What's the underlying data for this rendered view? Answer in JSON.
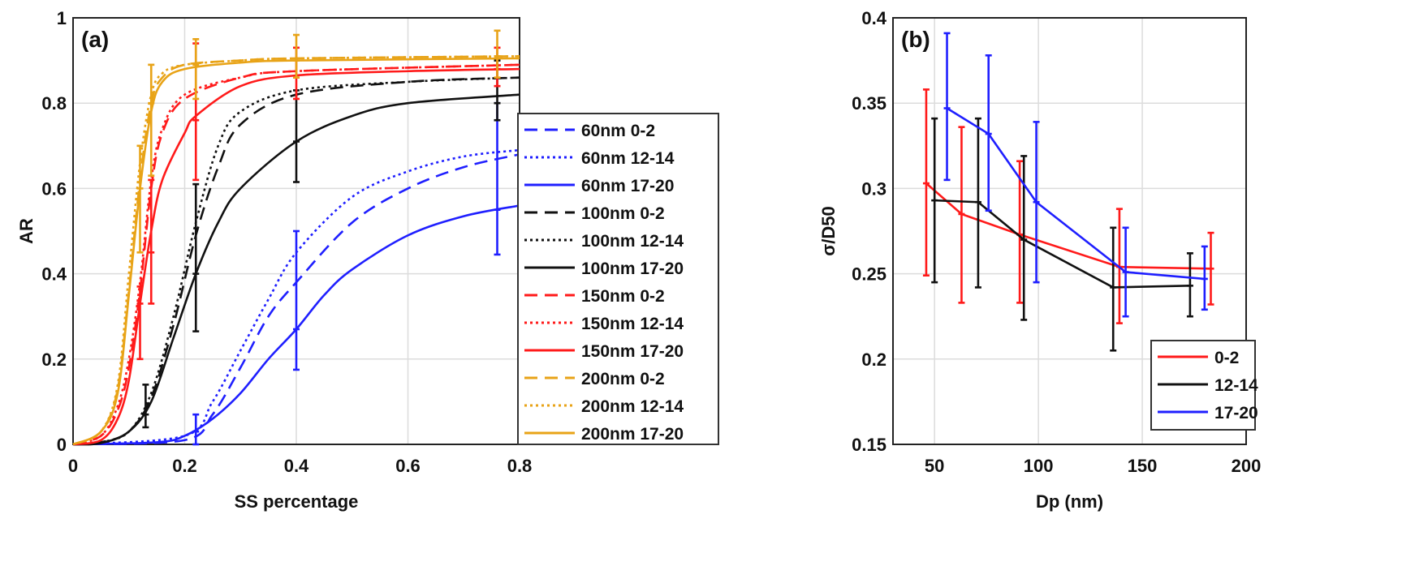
{
  "chart_data": [
    {
      "type": "line",
      "panel_label": "(a)",
      "xlabel": "SS percentage",
      "ylabel": "AR",
      "xlim": [
        0,
        0.8
      ],
      "ylim": [
        0,
        1
      ],
      "xticks": [
        "0",
        "0.2",
        "0.4",
        "0.6",
        "0.8"
      ],
      "yticks": [
        "0",
        "0.2",
        "0.4",
        "0.6",
        "0.8",
        "1"
      ],
      "grid": true,
      "legend_placement": "outside-right",
      "series": [
        {
          "name": "60nm 0-2",
          "color": "#1f1fff",
          "style": "dashed",
          "points": [
            [
              0,
              0
            ],
            [
              0.2,
              0.01
            ],
            [
              0.25,
              0.07
            ],
            [
              0.3,
              0.18
            ],
            [
              0.35,
              0.3
            ],
            [
              0.4,
              0.38
            ],
            [
              0.5,
              0.52
            ],
            [
              0.6,
              0.6
            ],
            [
              0.7,
              0.65
            ],
            [
              0.8,
              0.68
            ]
          ],
          "errorbars": []
        },
        {
          "name": "60nm 12-14",
          "color": "#1f1fff",
          "style": "dotted",
          "points": [
            [
              0,
              0
            ],
            [
              0.2,
              0.02
            ],
            [
              0.25,
              0.1
            ],
            [
              0.3,
              0.22
            ],
            [
              0.35,
              0.34
            ],
            [
              0.4,
              0.45
            ],
            [
              0.5,
              0.58
            ],
            [
              0.6,
              0.64
            ],
            [
              0.7,
              0.675
            ],
            [
              0.8,
              0.69
            ]
          ],
          "errorbars": []
        },
        {
          "name": "60nm 17-20",
          "color": "#1f1fff",
          "style": "solid",
          "points": [
            [
              0,
              0
            ],
            [
              0.15,
              0.005
            ],
            [
              0.2,
              0.02
            ],
            [
              0.25,
              0.06
            ],
            [
              0.3,
              0.12
            ],
            [
              0.35,
              0.2
            ],
            [
              0.4,
              0.27
            ],
            [
              0.45,
              0.35
            ],
            [
              0.5,
              0.41
            ],
            [
              0.6,
              0.49
            ],
            [
              0.7,
              0.535
            ],
            [
              0.8,
              0.56
            ]
          ],
          "errorbars": [
            [
              0.22,
              0.03,
              0.0,
              0.07
            ],
            [
              0.4,
              0.27,
              0.175,
              0.5
            ],
            [
              0.76,
              0.55,
              0.445,
              0.8
            ]
          ]
        },
        {
          "name": "100nm 0-2",
          "color": "#111111",
          "style": "dashed",
          "points": [
            [
              0,
              0
            ],
            [
              0.05,
              0.005
            ],
            [
              0.1,
              0.03
            ],
            [
              0.14,
              0.11
            ],
            [
              0.18,
              0.28
            ],
            [
              0.22,
              0.49
            ],
            [
              0.26,
              0.65
            ],
            [
              0.3,
              0.75
            ],
            [
              0.4,
              0.82
            ],
            [
              0.6,
              0.85
            ],
            [
              0.8,
              0.86
            ]
          ],
          "errorbars": []
        },
        {
          "name": "100nm 12-14",
          "color": "#111111",
          "style": "dotted",
          "points": [
            [
              0,
              0
            ],
            [
              0.05,
              0.005
            ],
            [
              0.1,
              0.03
            ],
            [
              0.14,
              0.12
            ],
            [
              0.18,
              0.3
            ],
            [
              0.22,
              0.52
            ],
            [
              0.26,
              0.7
            ],
            [
              0.3,
              0.78
            ],
            [
              0.4,
              0.83
            ],
            [
              0.6,
              0.85
            ],
            [
              0.8,
              0.86
            ]
          ],
          "errorbars": []
        },
        {
          "name": "100nm 17-20",
          "color": "#111111",
          "style": "solid",
          "points": [
            [
              0,
              0
            ],
            [
              0.05,
              0.003
            ],
            [
              0.1,
              0.03
            ],
            [
              0.14,
              0.1
            ],
            [
              0.18,
              0.25
            ],
            [
              0.22,
              0.4
            ],
            [
              0.26,
              0.52
            ],
            [
              0.3,
              0.6
            ],
            [
              0.4,
              0.71
            ],
            [
              0.5,
              0.77
            ],
            [
              0.6,
              0.8
            ],
            [
              0.8,
              0.82
            ]
          ],
          "errorbars": [
            [
              0.13,
              0.07,
              0.04,
              0.14
            ],
            [
              0.22,
              0.4,
              0.265,
              0.61
            ],
            [
              0.4,
              0.71,
              0.615,
              0.83
            ],
            [
              0.76,
              0.8,
              0.76,
              0.9
            ]
          ]
        },
        {
          "name": "150nm 0-2",
          "color": "#ff1a1a",
          "style": "dashed",
          "points": [
            [
              0,
              0
            ],
            [
              0.05,
              0.02
            ],
            [
              0.08,
              0.08
            ],
            [
              0.1,
              0.18
            ],
            [
              0.12,
              0.36
            ],
            [
              0.14,
              0.6
            ],
            [
              0.16,
              0.73
            ],
            [
              0.2,
              0.81
            ],
            [
              0.3,
              0.86
            ],
            [
              0.4,
              0.875
            ],
            [
              0.8,
              0.89
            ]
          ],
          "errorbars": []
        },
        {
          "name": "150nm 12-14",
          "color": "#ff1a1a",
          "style": "dotted",
          "points": [
            [
              0,
              0
            ],
            [
              0.05,
              0.02
            ],
            [
              0.08,
              0.09
            ],
            [
              0.1,
              0.2
            ],
            [
              0.12,
              0.38
            ],
            [
              0.14,
              0.62
            ],
            [
              0.16,
              0.74
            ],
            [
              0.2,
              0.82
            ],
            [
              0.3,
              0.86
            ],
            [
              0.4,
              0.875
            ],
            [
              0.8,
              0.89
            ]
          ],
          "errorbars": []
        },
        {
          "name": "150nm 17-20",
          "color": "#ff1a1a",
          "style": "solid",
          "points": [
            [
              0,
              0
            ],
            [
              0.05,
              0.01
            ],
            [
              0.08,
              0.06
            ],
            [
              0.1,
              0.15
            ],
            [
              0.12,
              0.33
            ],
            [
              0.14,
              0.5
            ],
            [
              0.16,
              0.62
            ],
            [
              0.2,
              0.73
            ],
            [
              0.22,
              0.77
            ],
            [
              0.3,
              0.84
            ],
            [
              0.4,
              0.865
            ],
            [
              0.6,
              0.875
            ],
            [
              0.8,
              0.88
            ]
          ],
          "errorbars": [
            [
              0.12,
              0.33,
              0.2,
              0.37
            ],
            [
              0.14,
              0.45,
              0.33,
              0.62
            ],
            [
              0.22,
              0.76,
              0.62,
              0.94
            ],
            [
              0.4,
              0.86,
              0.81,
              0.93
            ],
            [
              0.76,
              0.88,
              0.84,
              0.93
            ]
          ]
        },
        {
          "name": "200nm 0-2",
          "color": "#e8a317",
          "style": "dashed",
          "points": [
            [
              0,
              0
            ],
            [
              0.05,
              0.03
            ],
            [
              0.08,
              0.13
            ],
            [
              0.1,
              0.36
            ],
            [
              0.12,
              0.62
            ],
            [
              0.14,
              0.8
            ],
            [
              0.16,
              0.86
            ],
            [
              0.2,
              0.89
            ],
            [
              0.3,
              0.9
            ],
            [
              0.4,
              0.905
            ],
            [
              0.8,
              0.91
            ]
          ],
          "errorbars": []
        },
        {
          "name": "200nm 12-14",
          "color": "#e8a317",
          "style": "dotted",
          "points": [
            [
              0,
              0
            ],
            [
              0.05,
              0.03
            ],
            [
              0.08,
              0.14
            ],
            [
              0.1,
              0.4
            ],
            [
              0.12,
              0.66
            ],
            [
              0.14,
              0.82
            ],
            [
              0.16,
              0.87
            ],
            [
              0.2,
              0.89
            ],
            [
              0.3,
              0.9
            ],
            [
              0.4,
              0.905
            ],
            [
              0.8,
              0.91
            ]
          ],
          "errorbars": []
        },
        {
          "name": "200nm 17-20",
          "color": "#e8a317",
          "style": "solid",
          "points": [
            [
              0,
              0
            ],
            [
              0.05,
              0.03
            ],
            [
              0.08,
              0.12
            ],
            [
              0.1,
              0.35
            ],
            [
              0.12,
              0.6
            ],
            [
              0.14,
              0.78
            ],
            [
              0.16,
              0.85
            ],
            [
              0.2,
              0.88
            ],
            [
              0.3,
              0.895
            ],
            [
              0.4,
              0.9
            ],
            [
              0.8,
              0.905
            ]
          ],
          "errorbars": [
            [
              0.12,
              0.6,
              0.45,
              0.7
            ],
            [
              0.14,
              0.8,
              0.63,
              0.89
            ],
            [
              0.22,
              0.89,
              0.81,
              0.95
            ],
            [
              0.4,
              0.9,
              0.86,
              0.96
            ],
            [
              0.76,
              0.91,
              0.86,
              0.97
            ]
          ]
        }
      ]
    },
    {
      "type": "line",
      "panel_label": "(b)",
      "xlabel": "Dp (nm)",
      "ylabel": "σ/D50",
      "xlim": [
        30,
        200
      ],
      "ylim": [
        0.15,
        0.4
      ],
      "xticks": [
        "50",
        "100",
        "150",
        "200"
      ],
      "yticks": [
        "0.15",
        "0.2",
        "0.25",
        "0.3",
        "0.35",
        "0.4"
      ],
      "grid": true,
      "legend_placement": "bottom-right",
      "series": [
        {
          "name": "0-2",
          "color": "#ff1a1a",
          "style": "solid",
          "points": [
            [
              46,
              0.303
            ],
            [
              63,
              0.285
            ],
            [
              91,
              0.273
            ],
            [
              139,
              0.254
            ],
            [
              183,
              0.253
            ]
          ],
          "errorbars": [
            [
              46,
              0.303,
              0.249,
              0.358
            ],
            [
              63,
              0.285,
              0.233,
              0.336
            ],
            [
              91,
              0.273,
              0.233,
              0.316
            ],
            [
              139,
              0.254,
              0.221,
              0.288
            ],
            [
              183,
              0.253,
              0.232,
              0.274
            ]
          ]
        },
        {
          "name": "12-14",
          "color": "#111111",
          "style": "solid",
          "points": [
            [
              50,
              0.293
            ],
            [
              71,
              0.292
            ],
            [
              93,
              0.27
            ],
            [
              136,
              0.242
            ],
            [
              173,
              0.243
            ]
          ],
          "errorbars": [
            [
              50,
              0.293,
              0.245,
              0.341
            ],
            [
              71,
              0.292,
              0.242,
              0.341
            ],
            [
              93,
              0.27,
              0.223,
              0.319
            ],
            [
              136,
              0.242,
              0.205,
              0.277
            ],
            [
              173,
              0.243,
              0.225,
              0.262
            ]
          ]
        },
        {
          "name": "17-20",
          "color": "#1f1fff",
          "style": "solid",
          "points": [
            [
              56,
              0.347
            ],
            [
              76,
              0.332
            ],
            [
              99,
              0.292
            ],
            [
              142,
              0.251
            ],
            [
              180,
              0.247
            ]
          ],
          "errorbars": [
            [
              56,
              0.347,
              0.305,
              0.391
            ],
            [
              76,
              0.332,
              0.287,
              0.378
            ],
            [
              99,
              0.292,
              0.245,
              0.339
            ],
            [
              142,
              0.251,
              0.225,
              0.277
            ],
            [
              180,
              0.247,
              0.229,
              0.266
            ]
          ]
        }
      ]
    }
  ]
}
